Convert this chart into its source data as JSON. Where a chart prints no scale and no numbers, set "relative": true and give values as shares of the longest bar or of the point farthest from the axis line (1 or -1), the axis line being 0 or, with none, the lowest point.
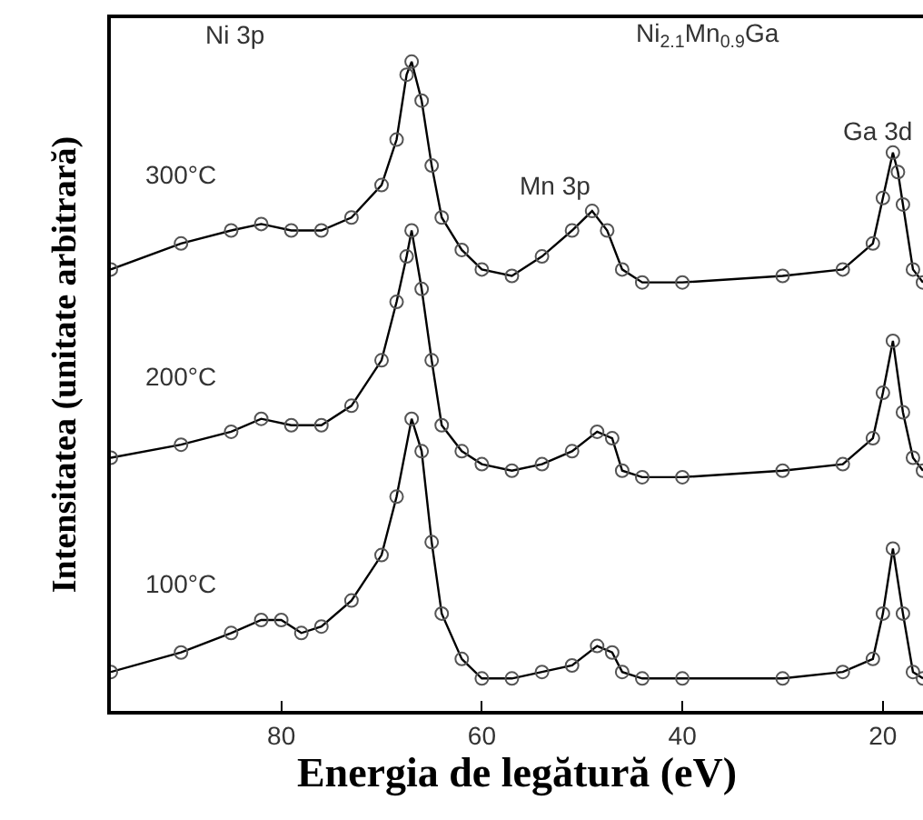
{
  "chart_data": {
    "type": "line",
    "relative": true,
    "xlabel": "Energia de legătură (eV)",
    "ylabel": "Intensitatea (unitate arbitrară)",
    "xlim": [
      97,
      16
    ],
    "xticks": [
      80,
      60,
      40,
      20
    ],
    "legend": false,
    "marker": "circle",
    "line_style": "solid",
    "series": [
      {
        "name": "300°C",
        "color": "#000000",
        "x": [
          97,
          90,
          85,
          82,
          79,
          76,
          73,
          70,
          68.5,
          67.5,
          67,
          66,
          65,
          64,
          62,
          60,
          57,
          54,
          51,
          49,
          47.5,
          46,
          44,
          40,
          30,
          24,
          21,
          20,
          19,
          18.5,
          18,
          17,
          16
        ],
        "values": [
          0.68,
          0.72,
          0.74,
          0.75,
          0.74,
          0.74,
          0.76,
          0.81,
          0.88,
          0.98,
          1,
          0.94,
          0.84,
          0.76,
          0.71,
          0.68,
          0.67,
          0.7,
          0.74,
          0.77,
          0.74,
          0.68,
          0.66,
          0.66,
          0.67,
          0.68,
          0.72,
          0.79,
          0.86,
          0.83,
          0.78,
          0.68,
          0.66
        ]
      },
      {
        "name": "200°C",
        "color": "#000000",
        "x": [
          97,
          90,
          85,
          82,
          79,
          76,
          73,
          70,
          68.5,
          67.5,
          67,
          66,
          65,
          64,
          62,
          60,
          57,
          54,
          51,
          48.5,
          47,
          46,
          44,
          40,
          30,
          24,
          21,
          20,
          19,
          18,
          17,
          16
        ],
        "values": [
          0.39,
          0.41,
          0.43,
          0.45,
          0.44,
          0.44,
          0.47,
          0.54,
          0.63,
          0.7,
          0.74,
          0.65,
          0.54,
          0.44,
          0.4,
          0.38,
          0.37,
          0.38,
          0.4,
          0.43,
          0.42,
          0.37,
          0.36,
          0.36,
          0.37,
          0.38,
          0.42,
          0.49,
          0.57,
          0.46,
          0.39,
          0.37
        ]
      },
      {
        "name": "100°C",
        "color": "#000000",
        "x": [
          97,
          90,
          85,
          82,
          80,
          78,
          76,
          73,
          70,
          68.5,
          67,
          66,
          65,
          64,
          62,
          60,
          57,
          54,
          51,
          48.5,
          47,
          46,
          44,
          40,
          30,
          24,
          21,
          20,
          19,
          18,
          17,
          16
        ],
        "values": [
          0.06,
          0.09,
          0.12,
          0.14,
          0.14,
          0.12,
          0.13,
          0.17,
          0.24,
          0.33,
          0.45,
          0.4,
          0.26,
          0.15,
          0.08,
          0.05,
          0.05,
          0.06,
          0.07,
          0.1,
          0.09,
          0.06,
          0.05,
          0.05,
          0.05,
          0.06,
          0.08,
          0.15,
          0.25,
          0.15,
          0.06,
          0.05
        ]
      }
    ],
    "annotations": [
      "Ni 3p",
      "Mn 3p",
      "Ga 3d",
      "Ni$_{2.1}$Mn$_{0.9}$Ga"
    ]
  }
}
